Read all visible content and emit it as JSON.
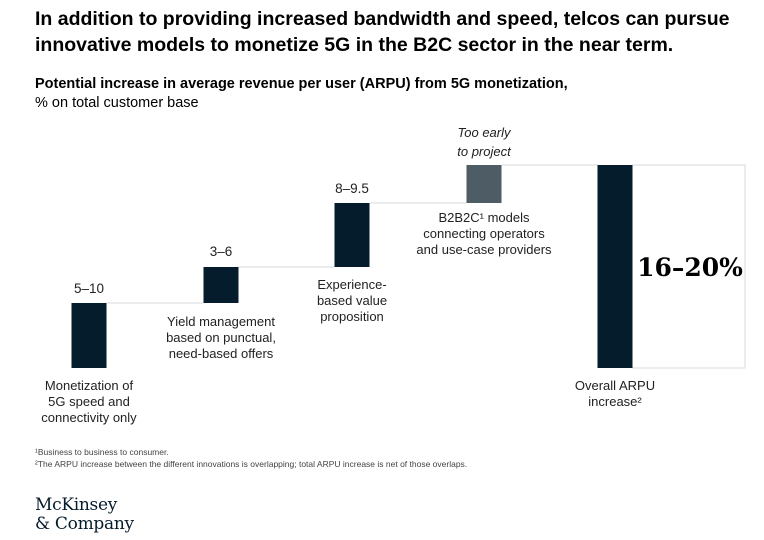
{
  "headline": "In addition to providing increased bandwidth and speed, telcos can pursue innovative models to monetize 5G in the B2C sector in the near term.",
  "subtitle_main": "Potential increase in average revenue per user (ARPU) from 5G monetization,",
  "subtitle_unit": "% on total customer base",
  "chart_data": {
    "type": "bar",
    "subtype": "waterfall",
    "categories": [
      [
        "Monetization of",
        "5G speed and",
        "connectivity only"
      ],
      [
        "Yield management",
        "based on punctual,",
        "need-based offers"
      ],
      [
        "Experience-",
        "based value",
        "proposition"
      ],
      [
        "B2B2C¹ models",
        "connecting operators",
        "and use-case providers"
      ],
      [
        "Overall ARPU",
        "increase²"
      ]
    ],
    "value_labels": [
      "5–10",
      "3–6",
      "8–9.5",
      "",
      ""
    ],
    "range_low": [
      5,
      3,
      8,
      null,
      16
    ],
    "range_high": [
      10,
      6,
      9.5,
      null,
      20
    ],
    "annotation": [
      "Too early",
      "to project"
    ],
    "total_label": "16–20%",
    "colors": {
      "dark": "#051c2c",
      "grey": "#4e5c66",
      "connector": "#d5d9dc"
    }
  },
  "footnotes": [
    "¹Business to business to consumer.",
    "²The ARPU increase between the different innovations is overlapping; total ARPU increase is net of those overlaps."
  ],
  "logo": [
    "McKinsey",
    "& Company"
  ]
}
